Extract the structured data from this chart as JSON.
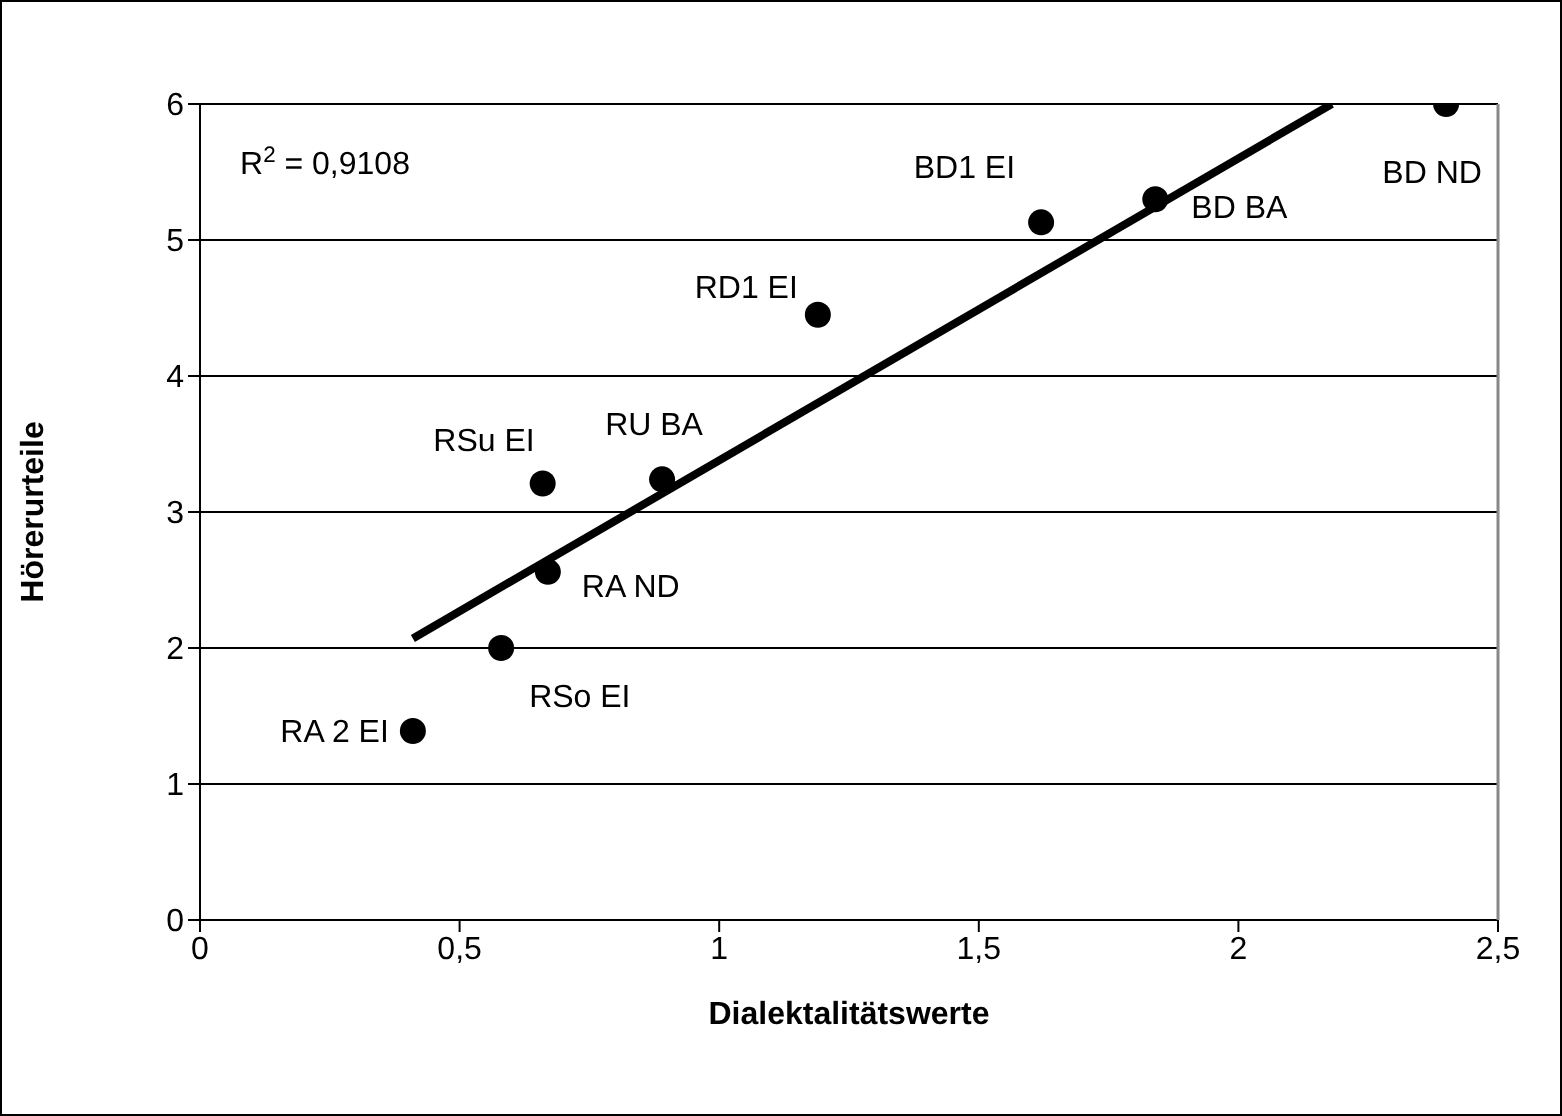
{
  "chart_data": {
    "type": "scatter",
    "xlabel": "Dialektalitätswerte",
    "ylabel": "Hörerurteile",
    "xlim": [
      0,
      2.5
    ],
    "xticks": [
      0,
      {
        "value": 0.5,
        "label": "0,5"
      },
      1,
      {
        "value": 1.5,
        "label": "1,5"
      },
      2,
      {
        "value": 2.5,
        "label": "2,5"
      }
    ],
    "ylim": [
      0,
      6
    ],
    "yticks": [
      0,
      1,
      2,
      3,
      4,
      5,
      6
    ],
    "grid": "y",
    "series": [
      {
        "color": "#000000",
        "marker": "circle",
        "x": [
          0.41,
          0.58,
          0.67,
          0.66,
          0.89,
          1.19,
          1.62,
          1.84,
          2.4
        ],
        "values": [
          1.39,
          2.0,
          2.56,
          3.21,
          3.24,
          4.45,
          5.13,
          5.3,
          6.0
        ]
      },
      {
        "type": "line",
        "color": "#000000",
        "line_style": "solid",
        "x": [
          0.41,
          2.18
        ],
        "values": [
          2.07,
          6.0
        ]
      }
    ],
    "annotations": [
      "R$^{2}$ = 0,9108",
      {
        "text": "RA 2 EI",
        "x": 0.41,
        "y": 1.39
      },
      {
        "text": "RSo EI",
        "x": 0.58,
        "y": 2.0
      },
      {
        "text": "RA ND",
        "x": 0.67,
        "y": 2.56
      },
      {
        "text": "RSu EI",
        "x": 0.66,
        "y": 3.21
      },
      {
        "text": "RU BA",
        "x": 0.89,
        "y": 3.24
      },
      {
        "text": "RD1 EI",
        "x": 1.19,
        "y": 4.45
      },
      {
        "text": "BD1 EI",
        "x": 1.62,
        "y": 5.13
      },
      {
        "text": "BD BA",
        "x": 1.84,
        "y": 5.3
      },
      {
        "text": "BD ND",
        "x": 2.4,
        "y": 6.0
      }
    ]
  }
}
